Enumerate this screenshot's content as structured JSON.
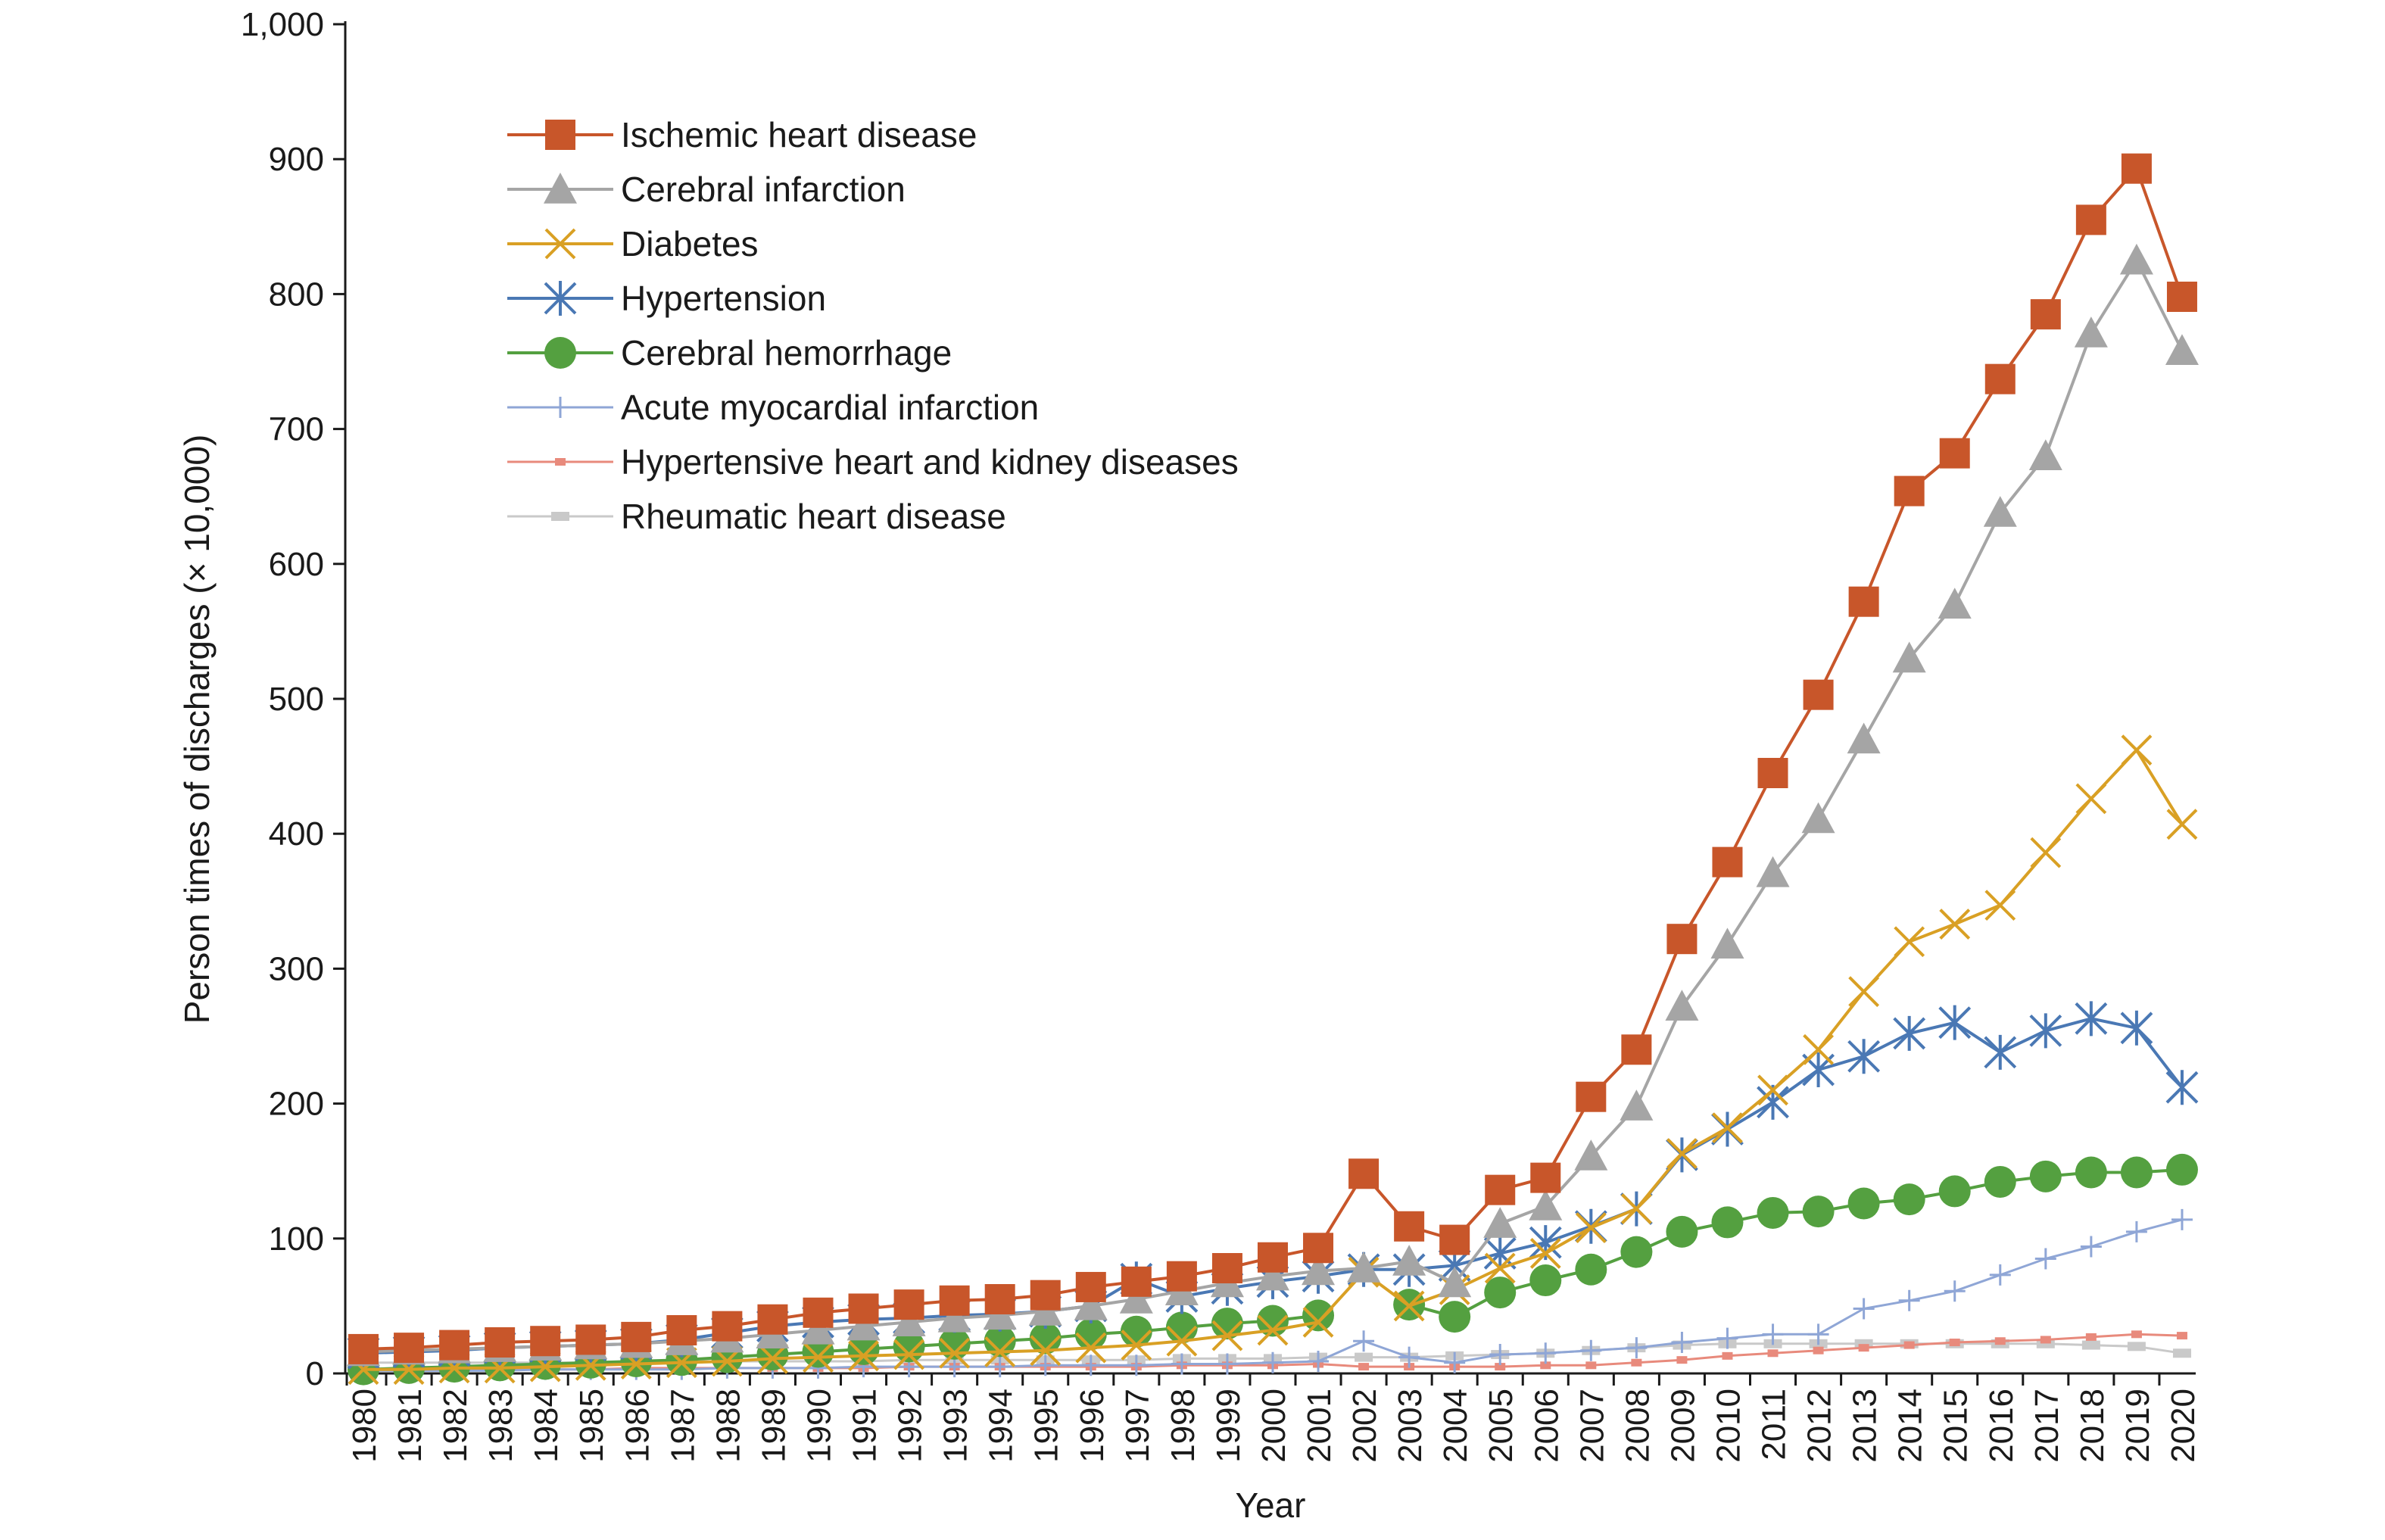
{
  "chart_data": {
    "type": "line",
    "title": "",
    "xlabel": "Year",
    "ylabel": "Person times of discharges (× 10,000)",
    "ylim": [
      0,
      1000
    ],
    "yticks": [
      0,
      100,
      200,
      300,
      400,
      500,
      600,
      700,
      800,
      900,
      1000
    ],
    "ytick_labels": [
      "0",
      "100",
      "200",
      "300",
      "400",
      "500",
      "600",
      "700",
      "800",
      "900",
      "1,000"
    ],
    "legend_position": "upper-left",
    "grid": false,
    "x": [
      "1980",
      "1981",
      "1982",
      "1983",
      "1984",
      "1985",
      "1986",
      "1987",
      "1988",
      "1989",
      "1990",
      "1991",
      "1992",
      "1993",
      "1994",
      "1995",
      "1996",
      "1997",
      "1998",
      "1999",
      "2000",
      "2001",
      "2002",
      "2003",
      "2004",
      "2005",
      "2006",
      "2007",
      "2008",
      "2009",
      "2010",
      "2011",
      "2012",
      "2013",
      "2014",
      "2015",
      "2016",
      "2017",
      "2018",
      "2019",
      "2020"
    ],
    "series": [
      {
        "name": "Ischemic heart disease",
        "color": "#c8562a",
        "marker": "square",
        "values": [
          18,
          19,
          21,
          23,
          24,
          25,
          27,
          32,
          35,
          40,
          45,
          48,
          51,
          54,
          55,
          58,
          64,
          68,
          72,
          78,
          86,
          93,
          148,
          109,
          99,
          136,
          145,
          205,
          240,
          322,
          379,
          445,
          503,
          572,
          654,
          682,
          737,
          785,
          855,
          893,
          798
        ]
      },
      {
        "name": "Cerebral infarction",
        "color": "#a5a5a5",
        "marker": "triangle",
        "values": [
          16,
          17,
          18,
          19,
          20,
          21,
          22,
          24,
          26,
          29,
          32,
          35,
          38,
          41,
          43,
          46,
          50,
          55,
          61,
          67,
          72,
          76,
          78,
          83,
          67,
          111,
          124,
          161,
          198,
          272,
          318,
          371,
          411,
          470,
          530,
          570,
          638,
          680,
          771,
          825,
          758
        ]
      },
      {
        "name": "Diabetes",
        "color": "#d9a024",
        "marker": "x",
        "values": [
          3,
          3,
          4,
          4,
          5,
          6,
          7,
          8,
          9,
          11,
          12,
          13,
          14,
          15,
          16,
          17,
          19,
          21,
          24,
          28,
          32,
          38,
          75,
          50,
          62,
          78,
          89,
          108,
          122,
          163,
          182,
          210,
          240,
          283,
          320,
          333,
          347,
          386,
          426,
          462,
          407
        ]
      },
      {
        "name": "Hypertension",
        "color": "#4a78b4",
        "marker": "asterisk",
        "values": [
          15,
          16,
          17,
          19,
          20,
          21,
          22,
          25,
          30,
          35,
          38,
          40,
          41,
          43,
          44,
          46,
          50,
          70,
          57,
          63,
          68,
          72,
          77,
          77,
          80,
          89,
          97,
          109,
          122,
          162,
          181,
          201,
          225,
          235,
          252,
          260,
          238,
          254,
          263,
          256,
          212
        ]
      },
      {
        "name": "Cerebral hemorrhage",
        "color": "#54a040",
        "marker": "circle",
        "values": [
          3,
          4,
          5,
          6,
          7,
          8,
          9,
          10,
          12,
          14,
          16,
          18,
          20,
          22,
          24,
          26,
          29,
          31,
          34,
          37,
          39,
          43,
          null,
          51,
          42,
          60,
          69,
          77,
          90,
          105,
          112,
          119,
          120,
          126,
          129,
          135,
          142,
          146,
          149,
          149,
          151
        ]
      },
      {
        "name": "Acute myocardial infarction",
        "color": "#8fa6d6",
        "marker": "plus",
        "values": [
          2,
          2,
          2,
          2,
          3,
          3,
          3,
          3,
          4,
          4,
          4,
          5,
          5,
          5,
          5,
          6,
          6,
          6,
          7,
          7,
          8,
          9,
          24,
          12,
          8,
          14,
          15,
          17,
          19,
          23,
          26,
          29,
          29,
          48,
          54,
          61,
          73,
          85,
          94,
          105,
          114
        ]
      },
      {
        "name": "Hypertensive heart and kidney diseases",
        "color": "#e88a7c",
        "marker": "dash",
        "values": [
          3,
          3,
          3,
          3,
          3,
          3,
          4,
          4,
          4,
          4,
          4,
          4,
          5,
          5,
          5,
          5,
          5,
          5,
          6,
          6,
          6,
          7,
          5,
          5,
          5,
          5,
          6,
          6,
          8,
          10,
          13,
          15,
          17,
          19,
          21,
          23,
          24,
          25,
          27,
          29,
          28
        ]
      },
      {
        "name": "Rheumatic heart disease",
        "color": "#c9c9c9",
        "marker": "bar",
        "values": [
          8,
          8,
          8,
          8,
          8,
          8,
          8,
          9,
          9,
          9,
          9,
          9,
          10,
          10,
          10,
          10,
          10,
          10,
          11,
          11,
          11,
          12,
          12,
          12,
          13,
          14,
          15,
          17,
          19,
          21,
          22,
          22,
          22,
          22,
          22,
          22,
          22,
          22,
          21,
          20,
          15
        ]
      }
    ]
  }
}
